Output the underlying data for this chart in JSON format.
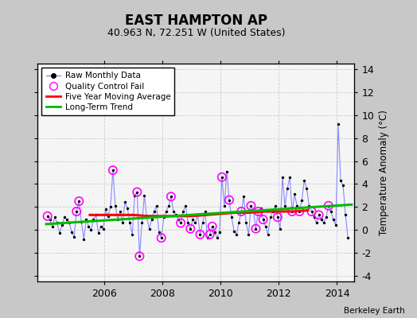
{
  "title": "EAST HAMPTON AP",
  "subtitle": "40.963 N, 72.251 W (United States)",
  "ylabel": "Temperature Anomaly (°C)",
  "attribution": "Berkeley Earth",
  "ylim": [
    -4.5,
    14.5
  ],
  "yticks": [
    -4,
    -2,
    0,
    2,
    4,
    6,
    8,
    10,
    12,
    14
  ],
  "xlim": [
    2003.7,
    2014.6
  ],
  "xticks": [
    2006,
    2008,
    2010,
    2012,
    2014
  ],
  "fig_bg_color": "#c8c8c8",
  "plot_bg_color": "#f5f5f5",
  "raw_color": "#8888ff",
  "dot_color": "#000000",
  "qc_color": "#ff00ff",
  "moving_avg_color": "#ff0000",
  "trend_color": "#00bb00",
  "grid_color": "#cccccc",
  "raw_data_x": [
    2004.042,
    2004.125,
    2004.208,
    2004.292,
    2004.375,
    2004.458,
    2004.542,
    2004.625,
    2004.708,
    2004.792,
    2004.875,
    2004.958,
    2005.042,
    2005.125,
    2005.208,
    2005.292,
    2005.375,
    2005.458,
    2005.542,
    2005.625,
    2005.708,
    2005.792,
    2005.875,
    2005.958,
    2006.042,
    2006.125,
    2006.208,
    2006.292,
    2006.375,
    2006.458,
    2006.542,
    2006.625,
    2006.708,
    2006.792,
    2006.875,
    2006.958,
    2007.042,
    2007.125,
    2007.208,
    2007.292,
    2007.375,
    2007.458,
    2007.542,
    2007.625,
    2007.708,
    2007.792,
    2007.875,
    2007.958,
    2008.042,
    2008.125,
    2008.208,
    2008.292,
    2008.375,
    2008.458,
    2008.542,
    2008.625,
    2008.708,
    2008.792,
    2008.875,
    2008.958,
    2009.042,
    2009.125,
    2009.208,
    2009.292,
    2009.375,
    2009.458,
    2009.542,
    2009.625,
    2009.708,
    2009.792,
    2009.875,
    2009.958,
    2010.042,
    2010.125,
    2010.208,
    2010.292,
    2010.375,
    2010.458,
    2010.542,
    2010.625,
    2010.708,
    2010.792,
    2010.875,
    2010.958,
    2011.042,
    2011.125,
    2011.208,
    2011.292,
    2011.375,
    2011.458,
    2011.542,
    2011.625,
    2011.708,
    2011.792,
    2011.875,
    2011.958,
    2012.042,
    2012.125,
    2012.208,
    2012.292,
    2012.375,
    2012.458,
    2012.542,
    2012.625,
    2012.708,
    2012.792,
    2012.875,
    2012.958,
    2013.042,
    2013.125,
    2013.208,
    2013.292,
    2013.375,
    2013.458,
    2013.542,
    2013.625,
    2013.708,
    2013.792,
    2013.875,
    2013.958,
    2014.042,
    2014.125,
    2014.208,
    2014.292,
    2014.375
  ],
  "raw_data_y": [
    1.2,
    0.9,
    0.3,
    1.1,
    0.6,
    -0.3,
    0.4,
    1.1,
    0.9,
    0.6,
    -0.2,
    -0.6,
    1.6,
    2.5,
    0.7,
    -0.8,
    0.9,
    0.3,
    0.0,
    0.9,
    1.3,
    -0.3,
    0.3,
    0.1,
    1.8,
    1.2,
    2.0,
    5.2,
    2.1,
    0.9,
    1.6,
    0.6,
    2.4,
    1.9,
    0.6,
    -0.4,
    3.0,
    3.3,
    -2.3,
    0.6,
    3.0,
    1.1,
    0.1,
    0.9,
    1.6,
    2.1,
    -0.2,
    -0.7,
    1.1,
    1.6,
    2.1,
    2.9,
    1.6,
    1.3,
    0.9,
    0.6,
    1.6,
    2.1,
    0.6,
    0.1,
    0.9,
    0.6,
    1.3,
    -0.4,
    0.6,
    1.6,
    -0.7,
    -0.4,
    0.3,
    -0.2,
    -0.7,
    -0.2,
    4.6,
    2.1,
    5.1,
    2.6,
    1.1,
    -0.1,
    -0.4,
    0.6,
    1.6,
    2.9,
    0.6,
    -0.4,
    2.1,
    1.6,
    0.1,
    1.6,
    1.9,
    0.9,
    0.3,
    -0.4,
    1.1,
    1.6,
    2.1,
    1.1,
    0.1,
    4.6,
    2.1,
    3.6,
    4.6,
    1.6,
    3.1,
    2.1,
    1.6,
    2.6,
    4.3,
    3.6,
    2.1,
    1.6,
    1.1,
    0.6,
    1.3,
    0.9,
    0.6,
    1.1,
    2.1,
    1.6,
    0.9,
    0.4,
    9.2,
    4.3,
    3.9,
    1.3,
    -0.7
  ],
  "qc_fail_indices": [
    0,
    12,
    13,
    27,
    37,
    38,
    47,
    51,
    55,
    59,
    63,
    67,
    68,
    72,
    75,
    80,
    84,
    86,
    87,
    89,
    95,
    101,
    104,
    109,
    112,
    116
  ],
  "moving_avg_x": [
    2005.5,
    2006.0,
    2006.5,
    2007.0,
    2007.5,
    2008.0,
    2008.5,
    2009.0,
    2009.5,
    2010.0,
    2010.5,
    2011.0,
    2011.5,
    2012.0,
    2012.5,
    2013.0
  ],
  "moving_avg_y": [
    1.3,
    1.3,
    1.3,
    1.3,
    1.2,
    1.2,
    1.2,
    1.2,
    1.3,
    1.4,
    1.5,
    1.5,
    1.6,
    1.6,
    1.6,
    1.7
  ],
  "trend_x": [
    2004.0,
    2014.5
  ],
  "trend_y": [
    0.5,
    2.2
  ]
}
